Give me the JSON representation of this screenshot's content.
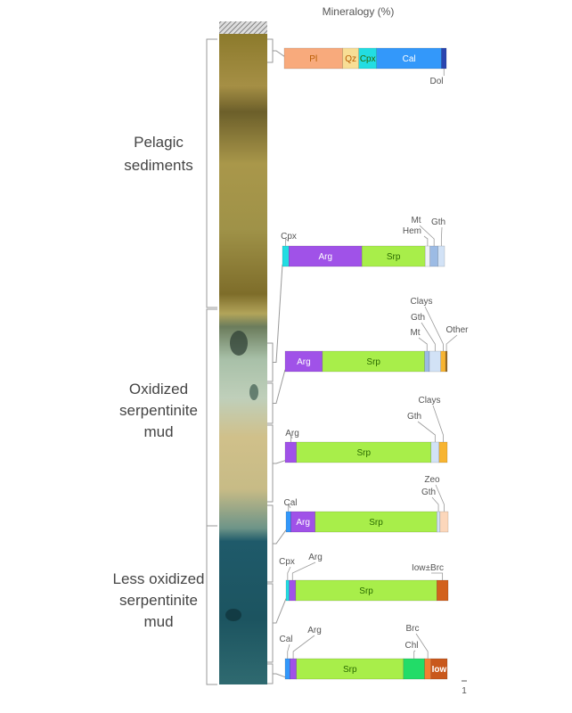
{
  "chart_data": {
    "type": "bar",
    "stacked": true,
    "orientation": "horizontal",
    "title": "Mineralogy (%)",
    "xlim": [
      0,
      100
    ],
    "scale_label": "1",
    "units": [
      {
        "name": "Pelagic sediments",
        "lines": [
          "Pelagic",
          "sediments"
        ]
      },
      {
        "name": "Oxidized serpentinite mud",
        "lines": [
          "Oxidized",
          "serpentinite",
          "mud"
        ]
      },
      {
        "name": "Less oxidized serpentinite mud",
        "lines": [
          "Less oxidized",
          "serpentinite",
          "mud"
        ]
      }
    ],
    "colors": {
      "Pl": "#f8aa7c",
      "Qz": "#f8de95",
      "Cpx": "#22dde2",
      "Cal": "#3398fa",
      "Dol": "#2a45b0",
      "Arg": "#a052e8",
      "Srp": "#a8ee4a",
      "Hem": "#eef2f8",
      "Mt": "#9cbbe4",
      "Gth": "#d2e2f6",
      "Clays": "#f7b431",
      "Other": "#9a6a20",
      "Zeo": "#fcd7bb",
      "Iow±Brc": "#d2611c",
      "Chl": "#22dc68",
      "Brc": "#f47d32",
      "Iow": "#c9581c"
    },
    "bars": [
      {
        "segments": [
          {
            "mineral": "Pl",
            "value": 36,
            "label": "Pl"
          },
          {
            "mineral": "Qz",
            "value": 10,
            "label": "Qz"
          },
          {
            "mineral": "Cpx",
            "value": 11,
            "label": "Cpx"
          },
          {
            "mineral": "Cal",
            "value": 40,
            "label": "Cal"
          },
          {
            "mineral": "Dol",
            "value": 3,
            "label": "Dol"
          }
        ]
      },
      {
        "segments": [
          {
            "mineral": "Cpx",
            "value": 4,
            "label": "Cpx"
          },
          {
            "mineral": "Arg",
            "value": 45,
            "label": "Arg"
          },
          {
            "mineral": "Srp",
            "value": 39,
            "label": "Srp"
          },
          {
            "mineral": "Hem",
            "value": 3,
            "label": "Hem"
          },
          {
            "mineral": "Mt",
            "value": 5,
            "label": "Mt"
          },
          {
            "mineral": "Gth",
            "value": 4,
            "label": "Gth"
          }
        ]
      },
      {
        "segments": [
          {
            "mineral": "Arg",
            "value": 23,
            "label": "Arg"
          },
          {
            "mineral": "Srp",
            "value": 63,
            "label": "Srp"
          },
          {
            "mineral": "Mt",
            "value": 3,
            "label": "Mt"
          },
          {
            "mineral": "Gth",
            "value": 7,
            "label": "Gth"
          },
          {
            "mineral": "Clays",
            "value": 3,
            "label": "Clays"
          },
          {
            "mineral": "Other",
            "value": 1,
            "label": "Other"
          }
        ]
      },
      {
        "segments": [
          {
            "mineral": "Arg",
            "value": 7,
            "label": "Arg"
          },
          {
            "mineral": "Srp",
            "value": 83,
            "label": "Srp"
          },
          {
            "mineral": "Gth",
            "value": 5,
            "label": "Gth"
          },
          {
            "mineral": "Clays",
            "value": 5,
            "label": "Clays"
          }
        ]
      },
      {
        "segments": [
          {
            "mineral": "Cal",
            "value": 3,
            "label": "Cal"
          },
          {
            "mineral": "Arg",
            "value": 15,
            "label": "Arg"
          },
          {
            "mineral": "Srp",
            "value": 75,
            "label": "Srp"
          },
          {
            "mineral": "Gth",
            "value": 2,
            "label": "Gth"
          },
          {
            "mineral": "Zeo",
            "value": 5,
            "label": "Zeo"
          }
        ]
      },
      {
        "segments": [
          {
            "mineral": "Cpx",
            "value": 2,
            "label": "Cpx"
          },
          {
            "mineral": "Arg",
            "value": 4,
            "label": "Arg"
          },
          {
            "mineral": "Srp",
            "value": 87,
            "label": "Srp"
          },
          {
            "mineral": "Iow±Brc",
            "value": 7,
            "label": "Iow±Brc"
          }
        ]
      },
      {
        "segments": [
          {
            "mineral": "Cal",
            "value": 3,
            "label": "Cal"
          },
          {
            "mineral": "Arg",
            "value": 4,
            "label": "Arg"
          },
          {
            "mineral": "Srp",
            "value": 66,
            "label": "Srp"
          },
          {
            "mineral": "Chl",
            "value": 13,
            "label": "Chl"
          },
          {
            "mineral": "Brc",
            "value": 4,
            "label": "Brc"
          },
          {
            "mineral": "Iow",
            "value": 10,
            "label": "Iow"
          }
        ]
      }
    ]
  }
}
